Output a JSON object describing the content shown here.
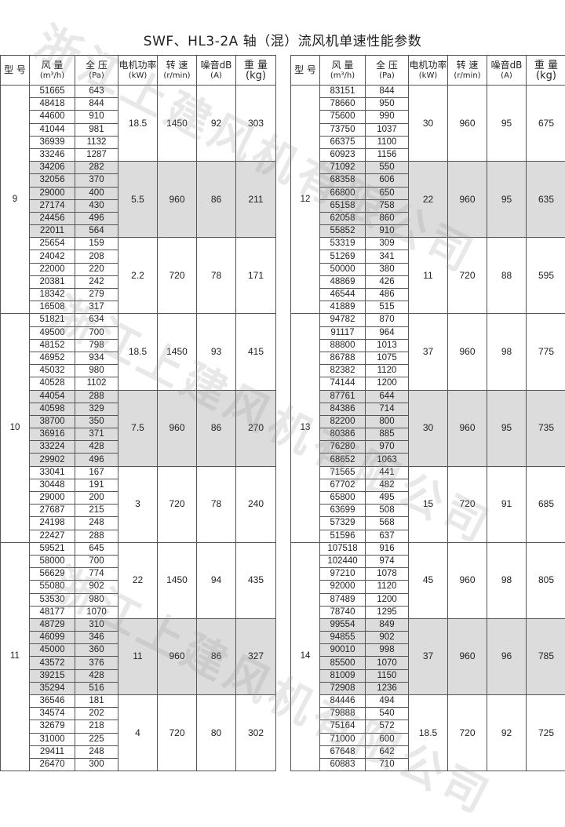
{
  "title": "SWF、HL3-2A 轴（混）流风机单速性能参数",
  "watermark": "浙江上建风机有限公司",
  "shade_color": "#dcdcdc",
  "headers": {
    "model": "型 号",
    "flow": "风 量",
    "flow_unit": "(m³/h)",
    "pressure": "全 压",
    "pressure_unit": "(Pa)",
    "power": "电机功率",
    "power_unit": "(kW)",
    "speed": "转 速",
    "speed_unit": "(r/min)",
    "noise": "噪音dB",
    "noise_unit": "(A)",
    "weight": "重 量",
    "weight_unit": "(kg)"
  },
  "tables": [
    {
      "models": [
        {
          "model": "9",
          "groups": [
            {
              "kw": "18.5",
              "rpm": "1450",
              "db": "92",
              "kg": "303",
              "rows": [
                [
                  "51665",
                  "643"
                ],
                [
                  "48418",
                  "844"
                ],
                [
                  "44600",
                  "910"
                ],
                [
                  "41044",
                  "981"
                ],
                [
                  "36939",
                  "1132"
                ],
                [
                  "33246",
                  "1287"
                ]
              ]
            },
            {
              "kw": "5.5",
              "rpm": "960",
              "db": "86",
              "kg": "211",
              "rows": [
                [
                  "34206",
                  "282"
                ],
                [
                  "32056",
                  "370"
                ],
                [
                  "29000",
                  "400"
                ],
                [
                  "27174",
                  "430"
                ],
                [
                  "24456",
                  "496"
                ],
                [
                  "22011",
                  "564"
                ]
              ]
            },
            {
              "kw": "2.2",
              "rpm": "720",
              "db": "78",
              "kg": "171",
              "rows": [
                [
                  "25654",
                  "159"
                ],
                [
                  "24042",
                  "208"
                ],
                [
                  "22000",
                  "220"
                ],
                [
                  "20381",
                  "242"
                ],
                [
                  "18342",
                  "279"
                ],
                [
                  "16508",
                  "317"
                ]
              ]
            }
          ]
        },
        {
          "model": "10",
          "groups": [
            {
              "kw": "18.5",
              "rpm": "1450",
              "db": "93",
              "kg": "415",
              "rows": [
                [
                  "51821",
                  "634"
                ],
                [
                  "49500",
                  "700"
                ],
                [
                  "48152",
                  "798"
                ],
                [
                  "46952",
                  "934"
                ],
                [
                  "45032",
                  "980"
                ],
                [
                  "40528",
                  "1102"
                ]
              ]
            },
            {
              "kw": "7.5",
              "rpm": "960",
              "db": "86",
              "kg": "270",
              "rows": [
                [
                  "44054",
                  "288"
                ],
                [
                  "40598",
                  "329"
                ],
                [
                  "38700",
                  "350"
                ],
                [
                  "36916",
                  "371"
                ],
                [
                  "33224",
                  "428"
                ],
                [
                  "29902",
                  "496"
                ]
              ]
            },
            {
              "kw": "3",
              "rpm": "720",
              "db": "78",
              "kg": "240",
              "rows": [
                [
                  "33041",
                  "167"
                ],
                [
                  "30448",
                  "191"
                ],
                [
                  "29000",
                  "200"
                ],
                [
                  "27687",
                  "215"
                ],
                [
                  "24198",
                  "248"
                ],
                [
                  "22427",
                  "288"
                ]
              ]
            }
          ]
        },
        {
          "model": "11",
          "groups": [
            {
              "kw": "22",
              "rpm": "1450",
              "db": "94",
              "kg": "435",
              "rows": [
                [
                  "59521",
                  "645"
                ],
                [
                  "58000",
                  "700"
                ],
                [
                  "56629",
                  "774"
                ],
                [
                  "55080",
                  "902"
                ],
                [
                  "53530",
                  "980"
                ],
                [
                  "48177",
                  "1070"
                ]
              ]
            },
            {
              "kw": "11",
              "rpm": "960",
              "db": "86",
              "kg": "327",
              "rows": [
                [
                  "48729",
                  "310"
                ],
                [
                  "46099",
                  "346"
                ],
                [
                  "45000",
                  "360"
                ],
                [
                  "43572",
                  "376"
                ],
                [
                  "39215",
                  "428"
                ],
                [
                  "35294",
                  "516"
                ]
              ]
            },
            {
              "kw": "4",
              "rpm": "720",
              "db": "80",
              "kg": "302",
              "rows": [
                [
                  "36546",
                  "181"
                ],
                [
                  "34574",
                  "202"
                ],
                [
                  "32679",
                  "218"
                ],
                [
                  "31000",
                  "225"
                ],
                [
                  "29411",
                  "248"
                ],
                [
                  "26470",
                  "300"
                ]
              ]
            }
          ]
        }
      ]
    },
    {
      "models": [
        {
          "model": "12",
          "groups": [
            {
              "kw": "30",
              "rpm": "960",
              "db": "95",
              "kg": "675",
              "rows": [
                [
                  "83151",
                  "844"
                ],
                [
                  "78660",
                  "950"
                ],
                [
                  "75600",
                  "990"
                ],
                [
                  "73750",
                  "1037"
                ],
                [
                  "66375",
                  "1100"
                ],
                [
                  "60923",
                  "1156"
                ]
              ]
            },
            {
              "kw": "22",
              "rpm": "960",
              "db": "95",
              "kg": "635",
              "rows": [
                [
                  "71092",
                  "550"
                ],
                [
                  "68358",
                  "606"
                ],
                [
                  "66800",
                  "650"
                ],
                [
                  "65158",
                  "758"
                ],
                [
                  "62058",
                  "860"
                ],
                [
                  "55852",
                  "910"
                ]
              ]
            },
            {
              "kw": "11",
              "rpm": "720",
              "db": "88",
              "kg": "595",
              "rows": [
                [
                  "53319",
                  "309"
                ],
                [
                  "51269",
                  "341"
                ],
                [
                  "50000",
                  "380"
                ],
                [
                  "48869",
                  "426"
                ],
                [
                  "46544",
                  "486"
                ],
                [
                  "41889",
                  "515"
                ]
              ]
            }
          ]
        },
        {
          "model": "13",
          "groups": [
            {
              "kw": "37",
              "rpm": "960",
              "db": "98",
              "kg": "775",
              "rows": [
                [
                  "94782",
                  "870"
                ],
                [
                  "91117",
                  "964"
                ],
                [
                  "88800",
                  "1013"
                ],
                [
                  "86788",
                  "1075"
                ],
                [
                  "82382",
                  "1120"
                ],
                [
                  "74144",
                  "1200"
                ]
              ]
            },
            {
              "kw": "30",
              "rpm": "960",
              "db": "95",
              "kg": "735",
              "rows": [
                [
                  "87761",
                  "644"
                ],
                [
                  "84386",
                  "714"
                ],
                [
                  "82200",
                  "800"
                ],
                [
                  "80386",
                  "885"
                ],
                [
                  "76280",
                  "970"
                ],
                [
                  "68652",
                  "1063"
                ]
              ]
            },
            {
              "kw": "15",
              "rpm": "720",
              "db": "91",
              "kg": "685",
              "rows": [
                [
                  "71565",
                  "441"
                ],
                [
                  "67702",
                  "482"
                ],
                [
                  "65800",
                  "495"
                ],
                [
                  "63699",
                  "508"
                ],
                [
                  "57329",
                  "568"
                ],
                [
                  "51596",
                  "637"
                ]
              ]
            }
          ]
        },
        {
          "model": "14",
          "groups": [
            {
              "kw": "45",
              "rpm": "960",
              "db": "98",
              "kg": "805",
              "rows": [
                [
                  "107518",
                  "916"
                ],
                [
                  "102440",
                  "974"
                ],
                [
                  "97210",
                  "1078"
                ],
                [
                  "92000",
                  "1120"
                ],
                [
                  "87489",
                  "1200"
                ],
                [
                  "78740",
                  "1295"
                ]
              ]
            },
            {
              "kw": "37",
              "rpm": "960",
              "db": "96",
              "kg": "785",
              "rows": [
                [
                  "99554",
                  "849"
                ],
                [
                  "94855",
                  "902"
                ],
                [
                  "90010",
                  "998"
                ],
                [
                  "85500",
                  "1070"
                ],
                [
                  "81009",
                  "1150"
                ],
                [
                  "72908",
                  "1236"
                ]
              ]
            },
            {
              "kw": "18.5",
              "rpm": "720",
              "db": "92",
              "kg": "725",
              "rows": [
                [
                  "84446",
                  "494"
                ],
                [
                  "79888",
                  "540"
                ],
                [
                  "75164",
                  "572"
                ],
                [
                  "71000",
                  "600"
                ],
                [
                  "67648",
                  "642"
                ],
                [
                  "60883",
                  "710"
                ]
              ]
            }
          ]
        }
      ]
    }
  ]
}
